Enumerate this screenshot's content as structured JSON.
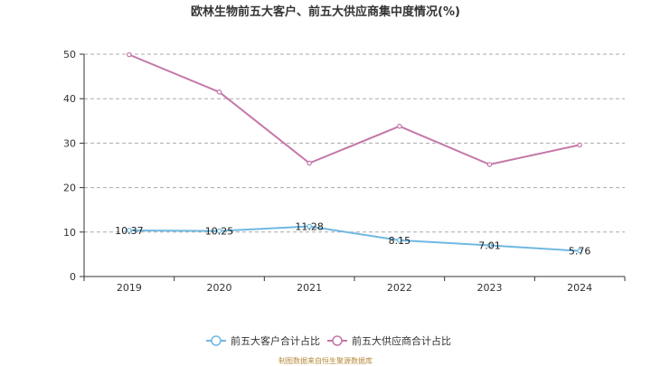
{
  "chart_data": {
    "type": "line",
    "title": "欧林生物前五大客户、前五大供应商集中度情况(%)",
    "categories": [
      "2019",
      "2020",
      "2021",
      "2022",
      "2023",
      "2024"
    ],
    "ylim": [
      0,
      50
    ],
    "yticks": [
      0,
      10,
      20,
      30,
      40,
      50
    ],
    "grid": true,
    "legend_position": "bottom",
    "series": [
      {
        "name": "前五大客户合计占比",
        "color": "#6fb8e0",
        "values": [
          10.37,
          10.25,
          11.28,
          8.15,
          7.01,
          5.76
        ],
        "labels": [
          "10.37",
          "10.25",
          "11.28",
          "8.15",
          "7.01",
          "5.76"
        ]
      },
      {
        "name": "前五大供应商合计占比",
        "color": "#c476a8",
        "values": [
          49.9,
          41.5,
          25.5,
          33.8,
          25.2,
          29.6
        ]
      }
    ]
  },
  "source_note": "制图数据来自恒生聚源数据库"
}
